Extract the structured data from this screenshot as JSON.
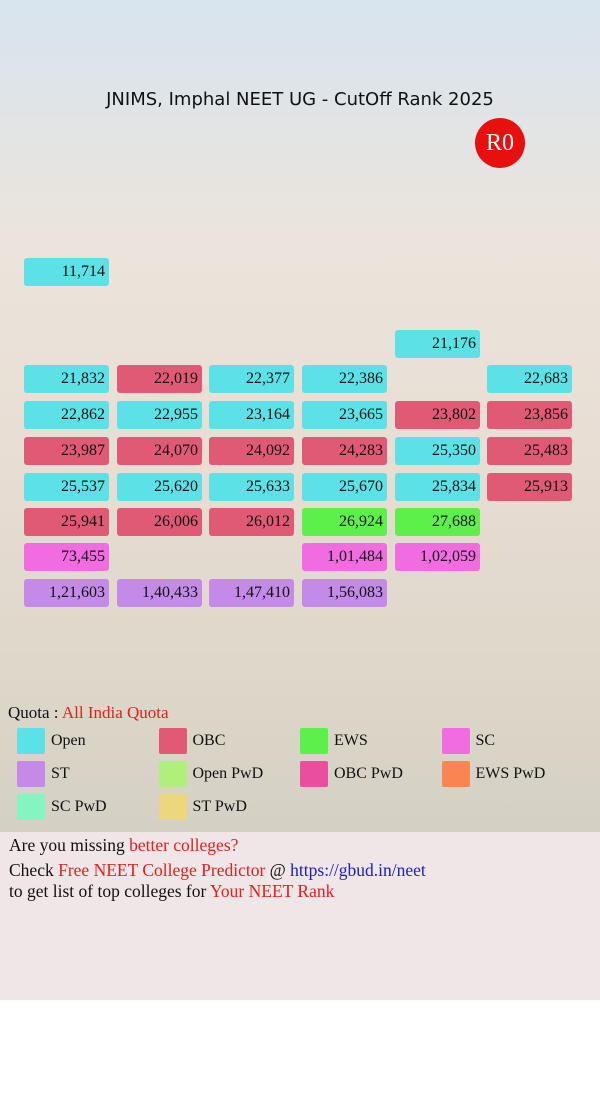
{
  "header": {
    "title": "JNIMS, Imphal NEET UG - CutOff Rank 2025",
    "round": "R0"
  },
  "grid": {
    "rows": [
      [
        {
          "rank": "11,714",
          "color": "#5ce1e6"
        },
        null,
        null,
        null,
        null,
        null
      ],
      [
        null,
        null,
        null,
        null,
        {
          "rank": "21,176",
          "color": "#5ce1e6"
        },
        null
      ],
      [
        {
          "rank": "21,832",
          "color": "#5ce1e6"
        },
        {
          "rank": "22,019",
          "color": "#e05a75"
        },
        {
          "rank": "22,377",
          "color": "#5ce1e6"
        },
        {
          "rank": "22,386",
          "color": "#5ce1e6"
        },
        null,
        {
          "rank": "22,683",
          "color": "#5ce1e6"
        }
      ],
      [
        {
          "rank": "22,862",
          "color": "#5ce1e6"
        },
        {
          "rank": "22,955",
          "color": "#5ce1e6"
        },
        {
          "rank": "23,164",
          "color": "#5ce1e6"
        },
        {
          "rank": "23,665",
          "color": "#5ce1e6"
        },
        {
          "rank": "23,802",
          "color": "#e05a75"
        },
        {
          "rank": "23,856",
          "color": "#e05a75"
        }
      ],
      [
        {
          "rank": "23,987",
          "color": "#e05a75"
        },
        {
          "rank": "24,070",
          "color": "#e05a75"
        },
        {
          "rank": "24,092",
          "color": "#e05a75"
        },
        {
          "rank": "24,283",
          "color": "#e05a75"
        },
        {
          "rank": "25,350",
          "color": "#5ce1e6"
        },
        {
          "rank": "25,483",
          "color": "#e05a75"
        }
      ],
      [
        {
          "rank": "25,537",
          "color": "#5ce1e6"
        },
        {
          "rank": "25,620",
          "color": "#5ce1e6"
        },
        {
          "rank": "25,633",
          "color": "#5ce1e6"
        },
        {
          "rank": "25,670",
          "color": "#5ce1e6"
        },
        {
          "rank": "25,834",
          "color": "#5ce1e6"
        },
        {
          "rank": "25,913",
          "color": "#e05a75"
        }
      ],
      [
        {
          "rank": "25,941",
          "color": "#e05a75"
        },
        {
          "rank": "26,006",
          "color": "#e05a75"
        },
        {
          "rank": "26,012",
          "color": "#e05a75"
        },
        {
          "rank": "26,924",
          "color": "#5ef04a"
        },
        {
          "rank": "27,688",
          "color": "#5ef04a"
        },
        null
      ],
      [
        {
          "rank": "73,455",
          "color": "#f06ce0"
        },
        null,
        null,
        {
          "rank": "1,01,484",
          "color": "#f06ce0"
        },
        {
          "rank": "1,02,059",
          "color": "#f06ce0"
        },
        null
      ],
      [
        {
          "rank": "1,21,603",
          "color": "#c38ae8"
        },
        {
          "rank": "1,40,433",
          "color": "#c38ae8"
        },
        {
          "rank": "1,47,410",
          "color": "#c38ae8"
        },
        {
          "rank": "1,56,083",
          "color": "#c38ae8"
        },
        null,
        null
      ]
    ]
  },
  "quota": {
    "label": "Quota :",
    "value": "All India Quota"
  },
  "legend": [
    {
      "name": "Open",
      "color": "#5ce1e6"
    },
    {
      "name": "OBC",
      "color": "#e05a75"
    },
    {
      "name": "EWS",
      "color": "#5ef04a"
    },
    {
      "name": "SC",
      "color": "#f06ce0"
    },
    {
      "name": "ST",
      "color": "#c38ae8"
    },
    {
      "name": "Open PwD",
      "color": "#aef07a"
    },
    {
      "name": "OBC PwD",
      "color": "#ea4f9f"
    },
    {
      "name": "EWS PwD",
      "color": "#fb8552"
    },
    {
      "name": "SC PwD",
      "color": "#82f5c0"
    },
    {
      "name": "ST PwD",
      "color": "#ecd77a"
    }
  ],
  "footer": {
    "lines": [
      [
        {
          "text": "Are you missing ",
          "color": "#111"
        },
        {
          "text": "better colleges?",
          "color": "#e0201c"
        }
      ],
      [
        {
          "text": "Check ",
          "color": "#111"
        },
        {
          "text": "Free NEET College Predictor",
          "color": "#e0201c"
        },
        {
          "text": " @ ",
          "color": "#111"
        },
        {
          "text": "https://gbud.in/neet",
          "color": "#1a1ad0"
        }
      ],
      [
        {
          "text": "to get list of top colleges for ",
          "color": "#111"
        },
        {
          "text": "Your NEET Rank",
          "color": "#e0201c"
        }
      ]
    ]
  }
}
